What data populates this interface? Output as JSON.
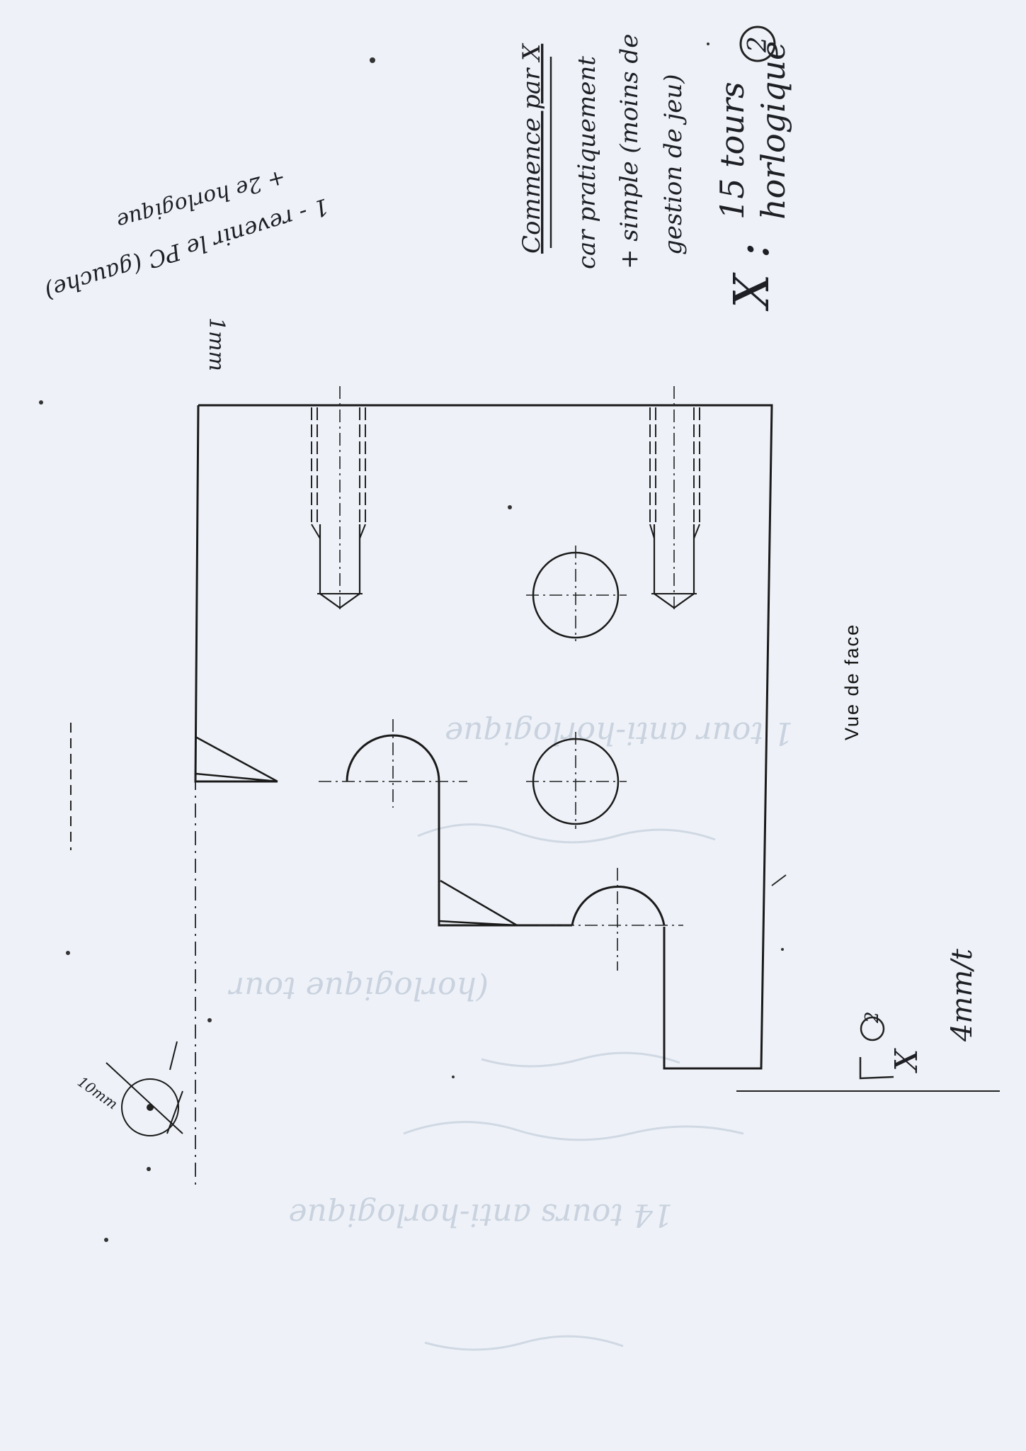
{
  "drawing": {
    "view_label": "Vue de face",
    "thickness_label": "1mm",
    "feed_x_label": "4mm/t",
    "axis_x_label": "X",
    "circled_num": "2",
    "tool_label": "10mm"
  },
  "notes_top_right": {
    "heading": "Commence par X",
    "line1": "car pratiquement",
    "line2": "+ simple (moins de",
    "line3": "gestion de jeu)",
    "x_speed_axis": "X :",
    "x_speed_turns": "15 tours",
    "x_speed_dir": "horlogique",
    "x_speed_circled": "2"
  },
  "notes_top_left": {
    "line1": "1 - revenir le PC (gauche)",
    "line2": "+ 2e horlogique"
  },
  "faint_backside_lines": [
    "1 tour anti-horlogique",
    "(horlogique tour",
    "14 tours anti-horlogique"
  ]
}
